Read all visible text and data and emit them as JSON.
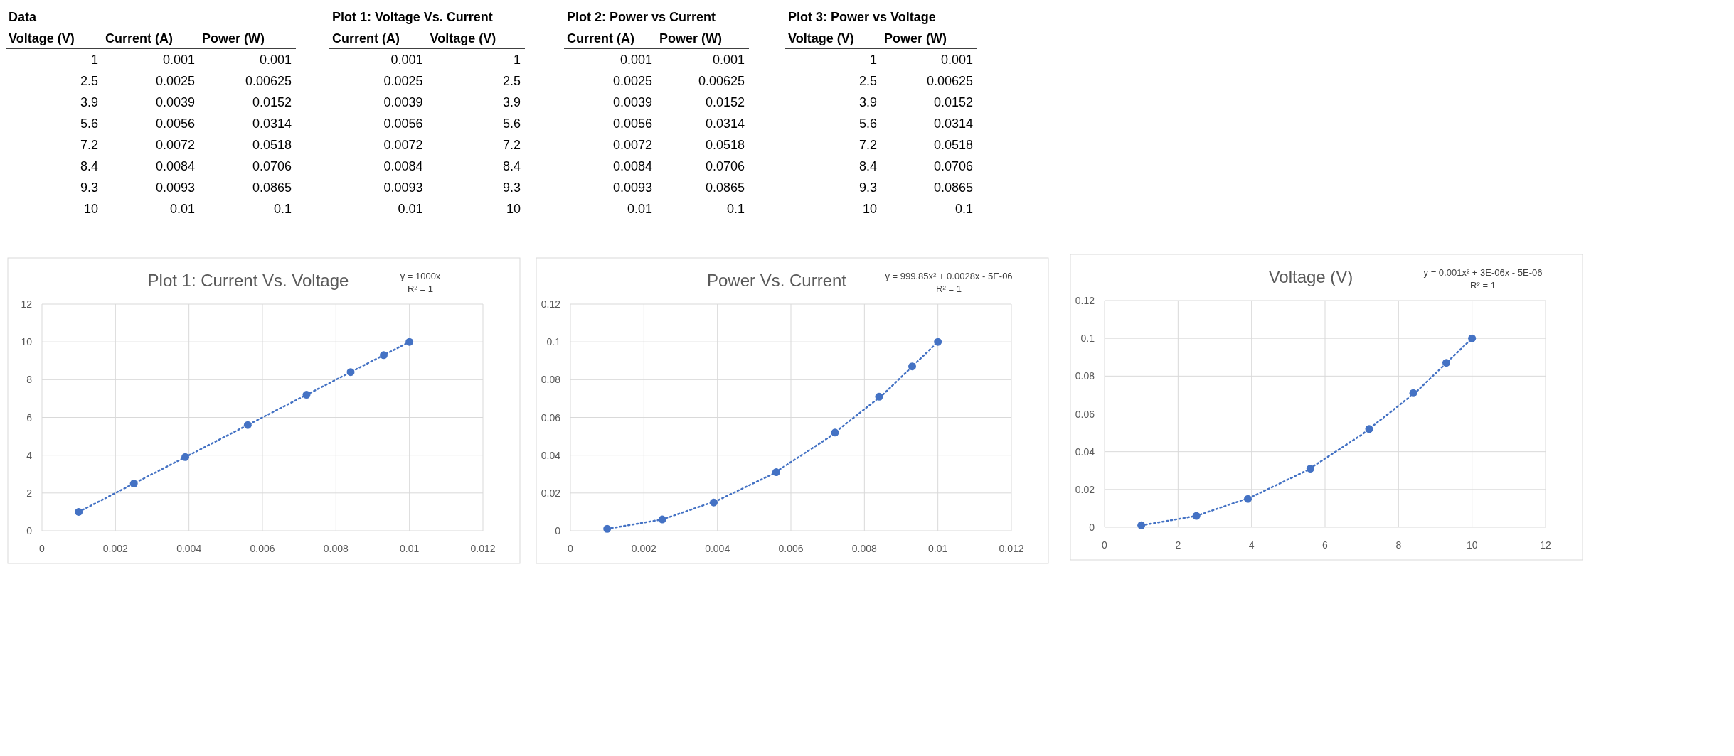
{
  "chart_data": [
    {
      "type": "other",
      "title": "Data",
      "categories": [
        "Voltage (V)",
        "Current (A)",
        "Power (W)"
      ],
      "annotations": [
        "1",
        "0.001",
        "0.001",
        "2.5",
        "0.0025",
        "0.00625",
        "3.9",
        "0.0039",
        "0.0152",
        "5.6",
        "0.0056",
        "0.0314",
        "7.2",
        "0.0072",
        "0.0518",
        "8.4",
        "0.0084",
        "0.0706",
        "9.3",
        "0.0093",
        "0.0865",
        "10",
        "0.01",
        "0.1"
      ]
    },
    {
      "type": "other",
      "title": "Plot 1: Voltage Vs. Current",
      "categories": [
        "Current (A)",
        "Voltage (V)"
      ],
      "annotations": [
        "0.001",
        "1",
        "0.0025",
        "2.5",
        "0.0039",
        "3.9",
        "0.0056",
        "5.6",
        "0.0072",
        "7.2",
        "0.0084",
        "8.4",
        "0.0093",
        "9.3",
        "0.01",
        "10"
      ]
    },
    {
      "type": "other",
      "title": "Plot 2: Power vs Current",
      "categories": [
        "Current (A)",
        "Power (W)"
      ],
      "annotations": [
        "0.001",
        "0.001",
        "0.0025",
        "0.00625",
        "0.0039",
        "0.0152",
        "0.0056",
        "0.0314",
        "0.0072",
        "0.0518",
        "0.0084",
        "0.0706",
        "0.0093",
        "0.0865",
        "0.01",
        "0.1"
      ]
    },
    {
      "type": "other",
      "title": "Plot 3: Power vs Voltage",
      "categories": [
        "Voltage (V)",
        "Power (W)"
      ],
      "annotations": [
        "1",
        "0.001",
        "2.5",
        "0.00625",
        "3.9",
        "0.0152",
        "5.6",
        "0.0314",
        "7.2",
        "0.0518",
        "8.4",
        "0.0706",
        "9.3",
        "0.0865",
        "10",
        "0.1"
      ]
    },
    {
      "type": "scatter",
      "title": "Plot 1: Current Vs. Voltage",
      "annotations": [
        "y = 1000x",
        "R² = 1"
      ],
      "grid": true,
      "xlim": [
        0,
        0.012
      ],
      "xticks": [
        0,
        0.002,
        0.004,
        0.006,
        0.008,
        0.01,
        0.012
      ],
      "ylim": [
        0,
        12
      ],
      "yticks": [
        0,
        2,
        4,
        6,
        8,
        10,
        12
      ],
      "series": [
        {
          "type": "scatter",
          "color": "#4472c4",
          "marker": "circle",
          "x": [
            0.001,
            0.0025,
            0.0039,
            0.0056,
            0.0072,
            0.0084,
            0.0093,
            0.01
          ],
          "values": [
            1,
            2.5,
            3.9,
            5.6,
            7.2,
            8.4,
            9.3,
            10
          ]
        },
        {
          "type": "line",
          "color": "#4472c4",
          "marker": "none",
          "line_style": "dotted",
          "x": [
            0.001,
            0.01
          ],
          "values": [
            1,
            10
          ]
        }
      ]
    },
    {
      "type": "scatter",
      "title": "Power Vs. Current",
      "annotations": [
        "y = 999.85x² + 0.0028x - 5E-06",
        "R² = 1"
      ],
      "grid": true,
      "xlim": [
        0,
        0.012
      ],
      "xticks": [
        0,
        0.002,
        0.004,
        0.006,
        0.008,
        0.01,
        0.012
      ],
      "ylim": [
        0,
        0.12
      ],
      "yticks": [
        0,
        0.02,
        0.04,
        0.06,
        0.08,
        0.1,
        0.12
      ],
      "series": [
        {
          "type": "scatter",
          "color": "#4472c4",
          "marker": "circle",
          "x": [
            0.001,
            0.0025,
            0.0039,
            0.0056,
            0.0072,
            0.0084,
            0.0093,
            0.01
          ],
          "values": [
            0.001,
            0.006,
            0.015,
            0.031,
            0.052,
            0.071,
            0.087,
            0.1
          ]
        },
        {
          "type": "line",
          "color": "#4472c4",
          "marker": "none",
          "line_style": "dotted",
          "x": [
            0.001,
            0.0025,
            0.004,
            0.0055,
            0.007,
            0.0085,
            0.01
          ],
          "values": [
            0.001,
            0.006,
            0.016,
            0.03,
            0.049,
            0.072,
            0.1
          ]
        }
      ]
    },
    {
      "type": "scatter",
      "title": "Voltage (V)",
      "annotations": [
        "y = 0.001x² + 3E-06x - 5E-06",
        "R² = 1"
      ],
      "grid": true,
      "xlim": [
        0,
        12
      ],
      "xticks": [
        0,
        2,
        4,
        6,
        8,
        10,
        12
      ],
      "ylim": [
        0,
        0.12
      ],
      "yticks": [
        0,
        0.02,
        0.04,
        0.06,
        0.08,
        0.1,
        0.12
      ],
      "series": [
        {
          "type": "scatter",
          "color": "#4472c4",
          "marker": "circle",
          "x": [
            1,
            2.5,
            3.9,
            5.6,
            7.2,
            8.4,
            9.3,
            10
          ],
          "values": [
            0.001,
            0.006,
            0.015,
            0.031,
            0.052,
            0.071,
            0.087,
            0.1
          ]
        },
        {
          "type": "line",
          "color": "#4472c4",
          "marker": "none",
          "line_style": "dotted",
          "x": [
            1,
            2.5,
            4,
            5.5,
            7,
            8.5,
            10
          ],
          "values": [
            0.001,
            0.006,
            0.016,
            0.03,
            0.049,
            0.072,
            0.1
          ]
        }
      ]
    }
  ]
}
